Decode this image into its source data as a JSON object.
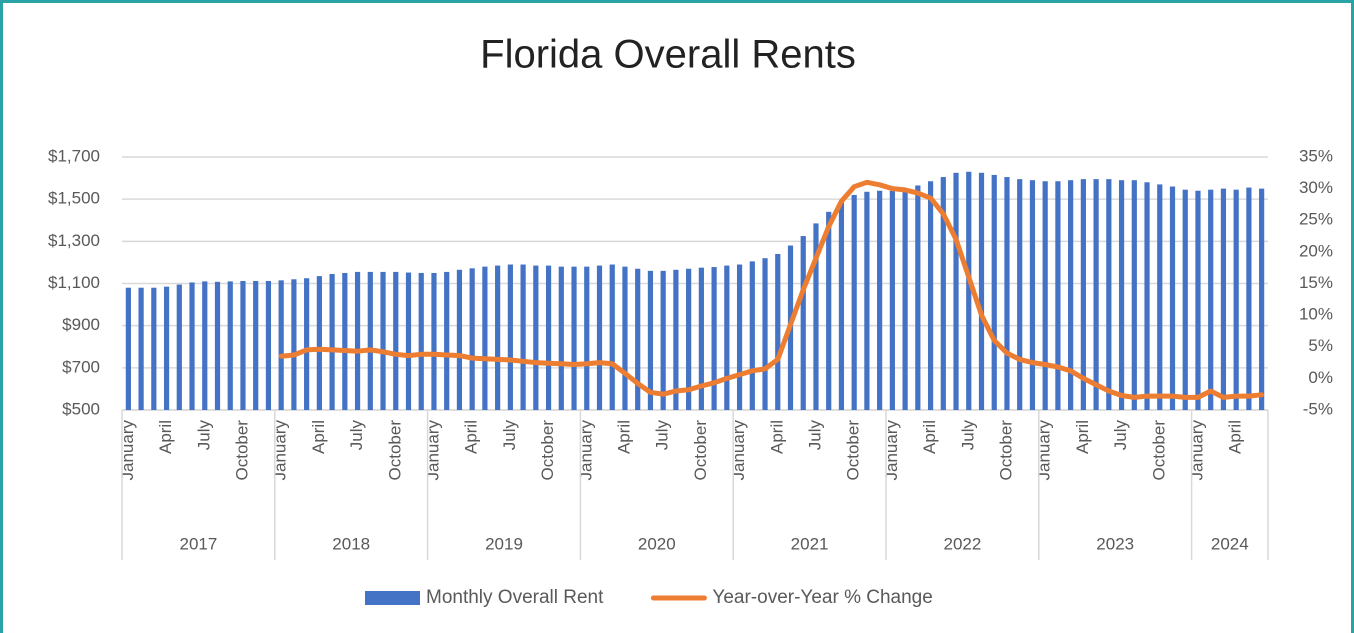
{
  "chart_data": {
    "type": "bar_line",
    "title": "Florida Overall Rents",
    "categories": [
      "January",
      null,
      null,
      "April",
      null,
      null,
      "July",
      null,
      null,
      "October",
      null,
      null,
      "January",
      null,
      null,
      "April",
      null,
      null,
      "July",
      null,
      null,
      "October",
      null,
      null,
      "January",
      null,
      null,
      "April",
      null,
      null,
      "July",
      null,
      null,
      "October",
      null,
      null,
      "January",
      null,
      null,
      "April",
      null,
      null,
      "July",
      null,
      null,
      "October",
      null,
      null,
      "January",
      null,
      null,
      "April",
      null,
      null,
      "July",
      null,
      null,
      "October",
      null,
      null,
      "January",
      null,
      null,
      "April",
      null,
      null,
      "July",
      null,
      null,
      "October",
      null,
      null,
      "January",
      null,
      null,
      "April",
      null,
      null,
      "July",
      null,
      null,
      "October",
      null,
      null,
      "January",
      null,
      null,
      "April",
      null,
      null
    ],
    "groups": [
      "2017",
      "2018",
      "2019",
      "2020",
      "2021",
      "2022",
      "2023",
      "2024"
    ],
    "series": [
      {
        "name": "Monthly Overall Rent",
        "color": "#4472c4",
        "kind": "bar",
        "values": [
          1080,
          1080,
          1080,
          1085,
          1095,
          1105,
          1110,
          1108,
          1110,
          1112,
          1112,
          1112,
          1115,
          1120,
          1125,
          1135,
          1145,
          1150,
          1155,
          1155,
          1155,
          1155,
          1152,
          1150,
          1150,
          1155,
          1165,
          1172,
          1180,
          1185,
          1190,
          1190,
          1185,
          1185,
          1180,
          1180,
          1180,
          1185,
          1190,
          1180,
          1170,
          1160,
          1160,
          1165,
          1170,
          1175,
          1178,
          1185,
          1190,
          1205,
          1220,
          1240,
          1280,
          1325,
          1385,
          1440,
          1490,
          1520,
          1535,
          1540,
          1540,
          1550,
          1565,
          1585,
          1605,
          1625,
          1630,
          1625,
          1615,
          1605,
          1595,
          1590,
          1585,
          1585,
          1590,
          1595,
          1595,
          1595,
          1590,
          1590,
          1580,
          1570,
          1560,
          1545,
          1540,
          1545,
          1550,
          1545,
          1555,
          1550
        ]
      },
      {
        "name": "Year-over-Year % Change",
        "color": "#ed7d31",
        "kind": "line",
        "axis": "y2",
        "values": [
          null,
          null,
          null,
          null,
          null,
          null,
          null,
          null,
          null,
          null,
          null,
          null,
          3.5,
          3.7,
          4.5,
          4.6,
          4.5,
          4.4,
          4.3,
          4.5,
          4.2,
          3.8,
          3.6,
          3.8,
          3.8,
          3.7,
          3.6,
          3.2,
          3.1,
          3.0,
          2.9,
          2.7,
          2.5,
          2.4,
          2.3,
          2.2,
          2.3,
          2.5,
          2.3,
          0.8,
          -0.8,
          -2.2,
          -2.5,
          -2.0,
          -1.8,
          -1.2,
          -0.7,
          0,
          0.6,
          1.2,
          1.5,
          3,
          8.5,
          14,
          19,
          24,
          28,
          30.3,
          31,
          30.6,
          30,
          29.8,
          29.3,
          28.5,
          26,
          22,
          16,
          10,
          6,
          4,
          3,
          2.5,
          2.2,
          1.8,
          1.2,
          0,
          -1,
          -2,
          -2.7,
          -3,
          -2.8,
          -2.8,
          -2.8,
          -3,
          -3,
          -2,
          -3,
          -2.8,
          -2.8,
          -2.6
        ]
      }
    ],
    "ylim": [
      500,
      1700
    ],
    "yticks": [
      {
        "value": 500,
        "label": "$500"
      },
      {
        "value": 700,
        "label": "$700"
      },
      {
        "value": 900,
        "label": "$900"
      },
      {
        "value": 1100,
        "label": "$1,100"
      },
      {
        "value": 1300,
        "label": "$1,300"
      },
      {
        "value": 1500,
        "label": "$1,500"
      },
      {
        "value": 1700,
        "label": "$1,700"
      }
    ],
    "y2lim": [
      -5,
      35
    ],
    "y2ticks": [
      {
        "value": -5,
        "label": "-5%"
      },
      {
        "value": 0,
        "label": "0%"
      },
      {
        "value": 5,
        "label": "5%"
      },
      {
        "value": 10,
        "label": "10%"
      },
      {
        "value": 15,
        "label": "15%"
      },
      {
        "value": 20,
        "label": "20%"
      },
      {
        "value": 25,
        "label": "25%"
      },
      {
        "value": 30,
        "label": "30%"
      },
      {
        "value": 35,
        "label": "35%"
      }
    ],
    "grid": true,
    "legend": "bottom"
  }
}
